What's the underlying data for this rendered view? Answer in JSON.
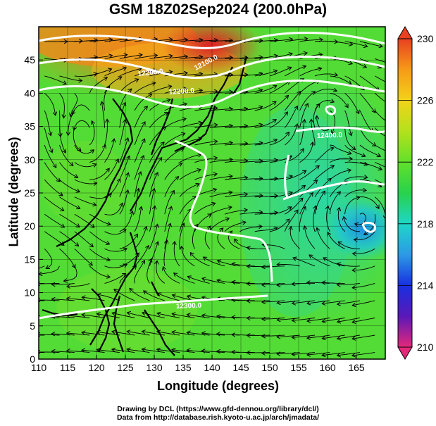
{
  "title": "GSM 18Z02Sep2024 (200.0hPa)",
  "xlabel": "Longitude (degrees)",
  "ylabel": "Latitude  (degrees)",
  "credits": [
    "Drawing by DCL (https://www.gfd-dennou.org/library/dcl/)",
    "Data from http://database.rish.kyoto-u.ac.jp/arch/jmadata/"
  ],
  "x_ticks": [
    "110",
    "115",
    "120",
    "125",
    "130",
    "135",
    "140",
    "145",
    "150",
    "155",
    "160",
    "165"
  ],
  "y_ticks": [
    "0",
    "5",
    "10",
    "15",
    "20",
    "25",
    "30",
    "35",
    "40",
    "45"
  ],
  "colorbar": {
    "ticks": [
      "230",
      "226",
      "222",
      "218",
      "214",
      "210"
    ],
    "min": 210,
    "max": 230,
    "colors": [
      "#e4287a",
      "#5a18b8",
      "#1830e0",
      "#2c9ae6",
      "#1ed6c8",
      "#28d24c",
      "#62e12a",
      "#b4e11c",
      "#f2d31a",
      "#f79a18",
      "#e84020"
    ]
  },
  "contour_labels": [
    "12200.0",
    "12100.0",
    "12200.0",
    "12300.0",
    "12400.0"
  ],
  "chart_data": {
    "type": "streamline-map",
    "xlim": [
      110,
      170
    ],
    "ylim": [
      0,
      50
    ],
    "variable_range": [
      210,
      230
    ],
    "features": [
      {
        "type": "cyclone",
        "lon": 160,
        "lat": 39.5
      },
      {
        "type": "low",
        "lon": 166,
        "lat": 22
      }
    ]
  }
}
